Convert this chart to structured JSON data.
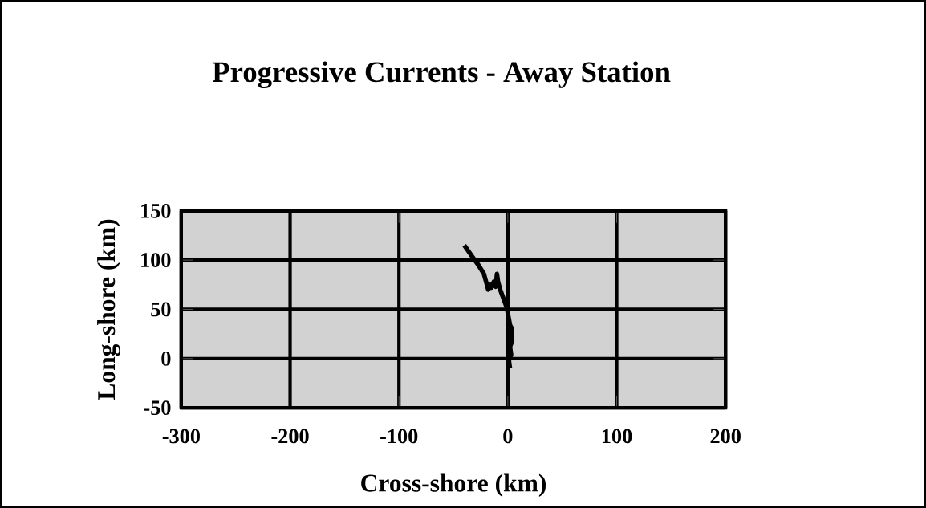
{
  "chart_data": {
    "type": "line",
    "title": "Progressive Currents - Away Station",
    "xlabel": "Cross-shore (km)",
    "ylabel": "Long-shore (km)",
    "x": [
      -40,
      -33,
      -27,
      -22,
      -20,
      -18,
      -16,
      -15,
      -13,
      -11,
      -10,
      -9,
      -7,
      -5,
      -3,
      -1,
      0,
      1,
      2,
      4,
      3,
      4,
      2,
      3,
      1,
      2
    ],
    "series": [
      {
        "color": "#000000",
        "values": [
          115,
          104,
          95,
          86,
          78,
          70,
          75,
          72,
          78,
          73,
          86,
          78,
          70,
          64,
          58,
          52,
          46,
          40,
          34,
          30,
          24,
          18,
          12,
          4,
          -2,
          -10
        ]
      }
    ],
    "xlim": [
      -300,
      200
    ],
    "ylim": [
      -50,
      150
    ],
    "xticks": [
      -300,
      -200,
      -100,
      0,
      100,
      200
    ],
    "yticks": [
      -50,
      0,
      50,
      100,
      150
    ],
    "grid": true,
    "marker": "none",
    "line_style": "solid"
  }
}
